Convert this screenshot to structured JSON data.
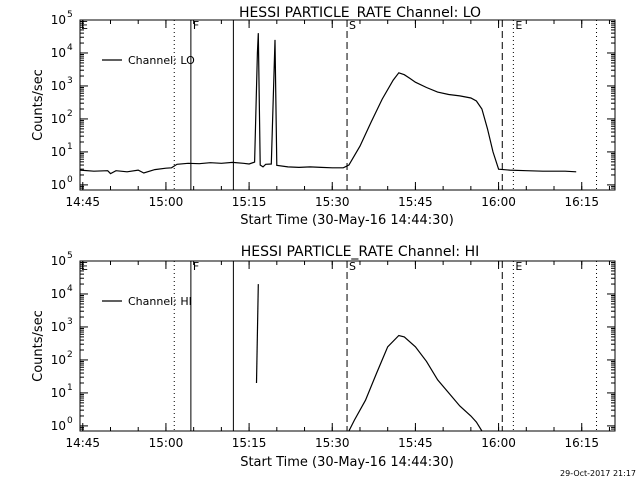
{
  "footer": {
    "timestamp": "29-Oct-2017 21:17"
  },
  "chart_data": [
    {
      "type": "line",
      "title": "HESSI PARTICLE_RATE Channel: LO",
      "xlabel": "Start Time (30-May-16 14:44:30)",
      "ylabel": "Counts/sec",
      "xlim": [
        "14:44:30",
        "16:21:00"
      ],
      "ylim": [
        0.7,
        100000
      ],
      "yscale": "log",
      "x_ticks": [
        "14:45",
        "15:00",
        "15:15",
        "15:30",
        "15:45",
        "16:00",
        "16:15"
      ],
      "y_ticks": [
        {
          "base": "10",
          "exp": "0"
        },
        {
          "base": "10",
          "exp": "1"
        },
        {
          "base": "10",
          "exp": "2"
        },
        {
          "base": "10",
          "exp": "3"
        },
        {
          "base": "10",
          "exp": "4"
        },
        {
          "base": "10",
          "exp": "5"
        }
      ],
      "grid": false,
      "legend": {
        "position": "top-left",
        "entries": [
          "Channel: LO"
        ]
      },
      "markers": [
        {
          "time": "15:01:30",
          "label": "",
          "style": "dotted"
        },
        {
          "time": "15:04:30",
          "label": "F",
          "style": "solid"
        },
        {
          "time": "15:12:10",
          "label": "",
          "style": "solid"
        },
        {
          "time": "15:32:40",
          "label": "S",
          "style": "dashed"
        },
        {
          "time": "16:00:40",
          "label": "",
          "style": "dashed"
        },
        {
          "time": "16:02:40",
          "label": "E",
          "style": "dotted"
        },
        {
          "time": "16:17:40",
          "label": "",
          "style": "dotted"
        }
      ],
      "corner_label": "E",
      "series": [
        {
          "name": "Channel: LO",
          "segments": [
            [
              [
                "14:44:30",
                2.8
              ],
              [
                "14:47:00",
                2.6
              ],
              [
                "14:49:30",
                2.7
              ],
              [
                "14:50:00",
                2.2
              ],
              [
                "14:51:00",
                2.7
              ],
              [
                "14:53:00",
                2.5
              ],
              [
                "14:55:00",
                2.8
              ],
              [
                "14:56:00",
                2.3
              ],
              [
                "14:58:00",
                2.9
              ],
              [
                "15:00:00",
                3.2
              ],
              [
                "15:01:00",
                3.3
              ],
              [
                "15:02:00",
                4.2
              ],
              [
                "15:04:00",
                4.5
              ],
              [
                "15:06:00",
                4.4
              ],
              [
                "15:08:00",
                4.7
              ],
              [
                "15:10:00",
                4.5
              ],
              [
                "15:12:00",
                4.8
              ],
              [
                "15:14:00",
                4.5
              ],
              [
                "15:15:00",
                4.3
              ],
              [
                "15:16:00",
                4.9
              ],
              [
                "15:16:30",
                10000
              ],
              [
                "15:16:40",
                40000
              ],
              [
                "15:17:00",
                4.0
              ],
              [
                "15:17:30",
                3.5
              ],
              [
                "15:18:00",
                4.2
              ],
              [
                "15:19:00",
                4.3
              ],
              [
                "15:19:40",
                25000
              ],
              [
                "15:20:00",
                3.9
              ],
              [
                "15:22:00",
                3.5
              ],
              [
                "15:24:00",
                3.4
              ],
              [
                "15:26:00",
                3.5
              ],
              [
                "15:28:00",
                3.4
              ],
              [
                "15:30:00",
                3.3
              ],
              [
                "15:32:00",
                3.3
              ],
              [
                "15:33:00",
                4.0
              ],
              [
                "15:35:00",
                15
              ],
              [
                "15:37:00",
                80
              ],
              [
                "15:39:00",
                400
              ],
              [
                "15:41:00",
                1500
              ],
              [
                "15:42:00",
                2500
              ],
              [
                "15:43:00",
                2200
              ],
              [
                "15:44:00",
                1700
              ],
              [
                "15:45:00",
                1300
              ],
              [
                "15:47:00",
                900
              ],
              [
                "15:49:00",
                650
              ],
              [
                "15:51:00",
                550
              ],
              [
                "15:53:00",
                500
              ],
              [
                "15:55:00",
                430
              ],
              [
                "15:56:00",
                350
              ],
              [
                "15:57:00",
                200
              ],
              [
                "15:58:00",
                50
              ],
              [
                "15:59:00",
                10
              ],
              [
                "16:00:00",
                3.0
              ],
              [
                "16:02:00",
                2.8
              ],
              [
                "16:05:00",
                2.7
              ],
              [
                "16:08:00",
                2.6
              ],
              [
                "16:12:00",
                2.6
              ],
              [
                "16:14:00",
                2.5
              ]
            ]
          ]
        }
      ]
    },
    {
      "type": "line",
      "title": "HESSI PARTICLE_RATE Channel: HI",
      "xlabel": "Start Time (30-May-16 14:44:30)",
      "ylabel": "Counts/sec",
      "xlim": [
        "14:44:30",
        "16:21:00"
      ],
      "ylim": [
        0.7,
        100000
      ],
      "yscale": "log",
      "x_ticks": [
        "14:45",
        "15:00",
        "15:15",
        "15:30",
        "15:45",
        "16:00",
        "16:15"
      ],
      "y_ticks": [
        {
          "base": "10",
          "exp": "0"
        },
        {
          "base": "10",
          "exp": "1"
        },
        {
          "base": "10",
          "exp": "2"
        },
        {
          "base": "10",
          "exp": "3"
        },
        {
          "base": "10",
          "exp": "4"
        },
        {
          "base": "10",
          "exp": "5"
        }
      ],
      "grid": false,
      "legend": {
        "position": "top-left",
        "entries": [
          "Channel: HI"
        ]
      },
      "markers": [
        {
          "time": "15:01:30",
          "label": "",
          "style": "dotted"
        },
        {
          "time": "15:04:30",
          "label": "F",
          "style": "solid"
        },
        {
          "time": "15:12:10",
          "label": "",
          "style": "solid"
        },
        {
          "time": "15:32:40",
          "label": "S",
          "style": "dashed"
        },
        {
          "time": "16:00:40",
          "label": "",
          "style": "dashed"
        },
        {
          "time": "16:02:40",
          "label": "E",
          "style": "dotted"
        },
        {
          "time": "16:17:40",
          "label": "",
          "style": "dotted"
        }
      ],
      "corner_label": "E",
      "series": [
        {
          "name": "Channel: HI",
          "segments": [
            [
              [
                "15:16:20",
                20
              ],
              [
                "15:16:40",
                20000
              ]
            ],
            [
              [
                "15:33:00",
                0.7
              ],
              [
                "15:34:00",
                1.5
              ],
              [
                "15:36:00",
                6
              ],
              [
                "15:38:00",
                40
              ],
              [
                "15:40:00",
                250
              ],
              [
                "15:42:00",
                550
              ],
              [
                "15:43:00",
                500
              ],
              [
                "15:45:00",
                250
              ],
              [
                "15:47:00",
                90
              ],
              [
                "15:49:00",
                25
              ],
              [
                "15:51:00",
                10
              ],
              [
                "15:53:00",
                4
              ],
              [
                "15:55:00",
                2
              ],
              [
                "15:56:00",
                1.3
              ],
              [
                "15:57:00",
                0.7
              ]
            ]
          ]
        }
      ]
    }
  ]
}
